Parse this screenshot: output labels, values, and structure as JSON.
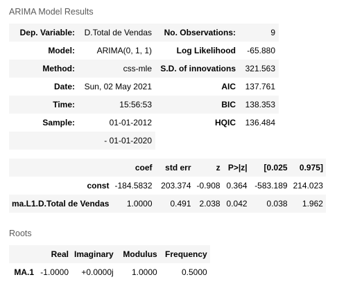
{
  "model_results": {
    "caption": "ARIMA Model Results",
    "rows": [
      [
        "Dep. Variable:",
        "D.Total de Vendas",
        "No. Observations:",
        "9"
      ],
      [
        "Model:",
        "ARIMA(0, 1, 1)",
        "Log Likelihood",
        "-65.880"
      ],
      [
        "Method:",
        "css-mle",
        "S.D. of innovations",
        "321.563"
      ],
      [
        "Date:",
        "Sun, 02 May 2021",
        "AIC",
        "137.761"
      ],
      [
        "Time:",
        "15:56:53",
        "BIC",
        "138.353"
      ],
      [
        "Sample:",
        "01-01-2012",
        "HQIC",
        "136.484"
      ],
      [
        "",
        "- 01-01-2020",
        "",
        ""
      ]
    ]
  },
  "coef_table": {
    "headers": [
      "",
      "coef",
      "std err",
      "z",
      "P>|z|",
      "[0.025",
      "0.975]"
    ],
    "rows": [
      [
        "const",
        "-184.5832",
        "203.374",
        "-0.908",
        "0.364",
        "-583.189",
        "214.023"
      ],
      [
        "ma.L1.D.Total de Vendas",
        "1.0000",
        "0.491",
        "2.038",
        "0.042",
        "0.038",
        "1.962"
      ]
    ]
  },
  "roots": {
    "caption": "Roots",
    "headers": [
      "",
      "Real",
      "Imaginary",
      "Modulus",
      "Frequency"
    ],
    "rows": [
      [
        "MA.1",
        "-1.0000",
        "+0.0000j",
        "1.0000",
        "0.5000"
      ]
    ]
  }
}
